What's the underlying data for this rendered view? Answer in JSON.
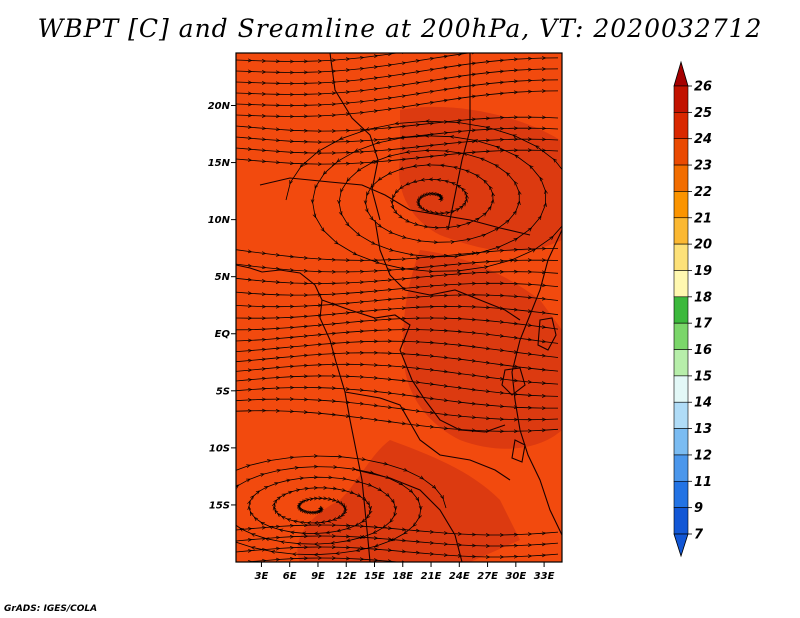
{
  "title": "WBPT [C] and Sreamline at 200hPa, VT: 2020032712",
  "footer": "GrADS: IGES/COLA",
  "map": {
    "background_color": "#f24a0e",
    "warm_patch_color": "#dc3a10",
    "lat_labels": [
      "20N",
      "15N",
      "10N",
      "5N",
      "EQ",
      "5S",
      "10S",
      "15S"
    ],
    "lat_values": [
      20,
      15,
      10,
      5,
      0,
      -5,
      -10,
      -15
    ],
    "lon_labels": [
      "3E",
      "6E",
      "9E",
      "12E",
      "15E",
      "18E",
      "21E",
      "24E",
      "27E",
      "30E",
      "33E"
    ],
    "lon_values": [
      3,
      6,
      9,
      12,
      15,
      18,
      21,
      24,
      27,
      30,
      33
    ],
    "lat_range": [
      -20,
      24.6
    ],
    "lon_range": [
      0.3,
      34.9
    ]
  },
  "colorbar": {
    "levels": [
      "26",
      "25",
      "24",
      "23",
      "22",
      "21",
      "20",
      "19",
      "18",
      "17",
      "16",
      "15",
      "14",
      "13",
      "12",
      "11",
      "9",
      "7"
    ],
    "colors": [
      "#a50000",
      "#c21200",
      "#d92800",
      "#ea4a02",
      "#f26d00",
      "#fb9400",
      "#fbb832",
      "#fde179",
      "#fff8b0",
      "#3cb93c",
      "#7bd66a",
      "#b7eeaa",
      "#e3f8f7",
      "#b0dcf7",
      "#7bbcf2",
      "#4b97ec",
      "#2373e4",
      "#1257d6"
    ]
  }
}
